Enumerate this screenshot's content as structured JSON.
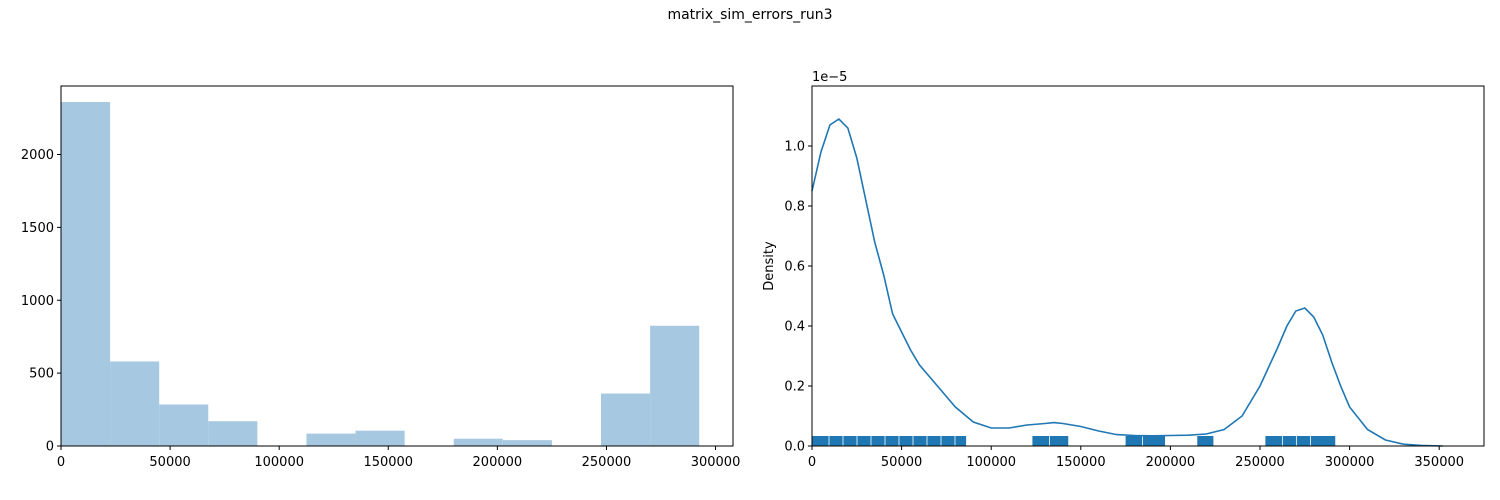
{
  "suptitle": "matrix_sim_errors_run3",
  "chart_data": [
    {
      "type": "bar",
      "subtype": "histogram",
      "bin_edges": [
        0,
        22500,
        45000,
        67500,
        90000,
        112500,
        135000,
        157500,
        180000,
        202500,
        225000,
        247500,
        270000,
        292500
      ],
      "values": [
        2360,
        580,
        285,
        170,
        0,
        85,
        105,
        0,
        50,
        40,
        0,
        360,
        825
      ],
      "xlim": [
        0,
        308000
      ],
      "ylim": [
        0,
        2470
      ],
      "xticks": [
        0,
        50000,
        100000,
        150000,
        200000,
        250000,
        300000
      ],
      "yticks": [
        0,
        500,
        1000,
        1500,
        2000
      ],
      "bar_color": "#a6c8e0",
      "grid": false
    },
    {
      "type": "line",
      "subtype": "kde-with-rug",
      "ylabel": "Density",
      "y_scale_label": "1e−5",
      "y_scale": 1e-05,
      "xlim": [
        0,
        375000
      ],
      "ylim": [
        0,
        1.2
      ],
      "xticks": [
        0,
        50000,
        100000,
        150000,
        200000,
        250000,
        300000,
        350000
      ],
      "yticks": [
        0.0,
        0.2,
        0.4,
        0.6,
        0.8,
        1.0
      ],
      "line_color": "#1f77b4",
      "grid": false,
      "x": [
        0,
        5000,
        10000,
        15000,
        20000,
        25000,
        30000,
        35000,
        40000,
        45000,
        50000,
        55000,
        60000,
        70000,
        80000,
        90000,
        100000,
        110000,
        120000,
        130000,
        135000,
        140000,
        150000,
        160000,
        170000,
        180000,
        190000,
        200000,
        210000,
        220000,
        230000,
        240000,
        250000,
        260000,
        265000,
        270000,
        275000,
        280000,
        285000,
        290000,
        295000,
        300000,
        310000,
        320000,
        330000,
        340000,
        352000
      ],
      "y": [
        0.85,
        0.98,
        1.07,
        1.09,
        1.06,
        0.96,
        0.82,
        0.68,
        0.57,
        0.44,
        0.38,
        0.32,
        0.27,
        0.2,
        0.13,
        0.08,
        0.06,
        0.06,
        0.07,
        0.075,
        0.078,
        0.075,
        0.065,
        0.05,
        0.038,
        0.035,
        0.034,
        0.035,
        0.036,
        0.04,
        0.055,
        0.1,
        0.2,
        0.33,
        0.4,
        0.45,
        0.46,
        0.43,
        0.37,
        0.28,
        0.2,
        0.13,
        0.055,
        0.02,
        0.006,
        0.002,
        0.0
      ],
      "rug_ranges": [
        [
          0,
          86000
        ],
        [
          123000,
          143000
        ],
        [
          175000,
          197000
        ],
        [
          215000,
          224000
        ],
        [
          253000,
          292000
        ]
      ]
    }
  ]
}
